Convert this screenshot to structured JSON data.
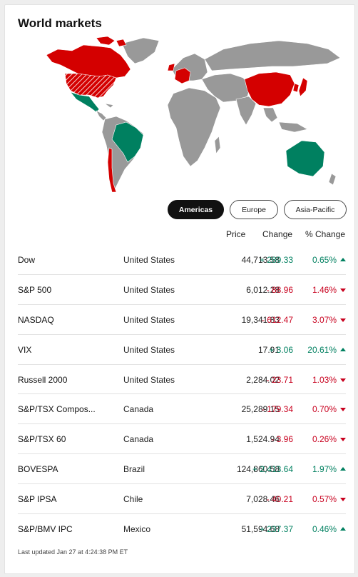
{
  "title": "World markets",
  "colors": {
    "up": "#008060",
    "down": "#c8001e",
    "neutral": "#999999"
  },
  "tabs": [
    {
      "label": "Americas",
      "active": true
    },
    {
      "label": "Europe",
      "active": false
    },
    {
      "label": "Asia-Pacific",
      "active": false
    }
  ],
  "headers": {
    "price": "Price",
    "change": "Change",
    "pct_change": "% Change"
  },
  "rows": [
    {
      "name": "Dow",
      "country": "United States",
      "price": "44,713.58",
      "change": "+ 289.33",
      "pct": "0.65%",
      "dir": "up"
    },
    {
      "name": "S&P 500",
      "country": "United States",
      "price": "6,012.28",
      "change": "- 88.96",
      "pct": "1.46%",
      "dir": "down"
    },
    {
      "name": "NASDAQ",
      "country": "United States",
      "price": "19,341.83",
      "change": "- 612.47",
      "pct": "3.07%",
      "dir": "down"
    },
    {
      "name": "VIX",
      "country": "United States",
      "price": "17.91",
      "change": "+ 3.06",
      "pct": "20.61%",
      "dir": "up"
    },
    {
      "name": "Russell 2000",
      "country": "United States",
      "price": "2,284.02",
      "change": "- 23.71",
      "pct": "1.03%",
      "dir": "down"
    },
    {
      "name": "S&P/TSX Compos...",
      "country": "Canada",
      "price": "25,289.15",
      "change": "- 179.34",
      "pct": "0.70%",
      "dir": "down"
    },
    {
      "name": "S&P/TSX 60",
      "country": "Canada",
      "price": "1,524.94",
      "change": "- 3.96",
      "pct": "0.26%",
      "dir": "down"
    },
    {
      "name": "BOVESPA",
      "country": "Brazil",
      "price": "124,860.58",
      "change": "+ 2,413.64",
      "pct": "1.97%",
      "dir": "up"
    },
    {
      "name": "S&P IPSA",
      "country": "Chile",
      "price": "7,028.46",
      "change": "- 40.21",
      "pct": "0.57%",
      "dir": "down"
    },
    {
      "name": "S&P/BMV IPC",
      "country": "Mexico",
      "price": "51,594.68",
      "change": "+ 237.37",
      "pct": "0.46%",
      "dir": "up"
    }
  ],
  "footer": "Last updated Jan 27 at 4:24:38 PM ET"
}
